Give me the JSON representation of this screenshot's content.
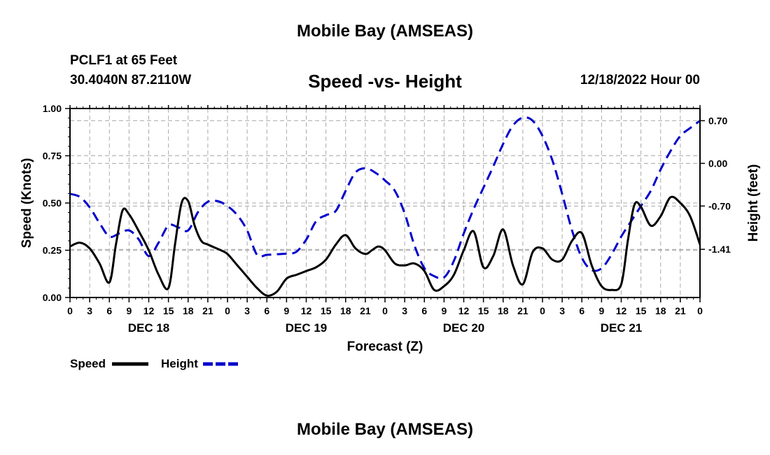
{
  "header": {
    "title": "Mobile Bay (AMSEAS)",
    "station": "PCLF1 at 65 Feet",
    "coords": "30.4040N  87.2110W",
    "subtitle": "Speed -vs- Height",
    "date": "12/18/2022 Hour 00"
  },
  "footer": {
    "title": "Mobile Bay (AMSEAS)"
  },
  "colors": {
    "speed": "#000000",
    "height": "#0000cc",
    "grid": "#aaaaaa"
  },
  "chart_data": {
    "type": "line",
    "title": "Speed -vs- Height",
    "xlabel": "Forecast (Z)",
    "ylabel": "Speed (Knots)",
    "y2label": "Height (feet)",
    "xlim": [
      0,
      96
    ],
    "ylim": [
      0,
      1
    ],
    "y2lim": [
      -2.2,
      0.9
    ],
    "x_ticks": [
      0,
      3,
      6,
      9,
      12,
      15,
      18,
      21,
      24,
      27,
      30,
      33,
      36,
      39,
      42,
      45,
      48,
      51,
      54,
      57,
      60,
      63,
      66,
      69,
      72,
      75,
      78,
      81,
      84,
      87,
      90,
      93,
      96
    ],
    "x_tick_labels": [
      "0",
      "3",
      "6",
      "9",
      "12",
      "15",
      "18",
      "21",
      "0",
      "3",
      "6",
      "9",
      "12",
      "15",
      "18",
      "21",
      "0",
      "3",
      "6",
      "9",
      "12",
      "15",
      "18",
      "21",
      "0",
      "3",
      "6",
      "9",
      "12",
      "15",
      "18",
      "21",
      "0"
    ],
    "day_labels": [
      {
        "x": 12,
        "label": "DEC 18"
      },
      {
        "x": 36,
        "label": "DEC 19"
      },
      {
        "x": 60,
        "label": "DEC 20"
      },
      {
        "x": 84,
        "label": "DEC 21"
      }
    ],
    "y_ticks": [
      0,
      0.25,
      0.5,
      0.75,
      1.0
    ],
    "y_tick_labels": [
      "0.00",
      "0.25",
      "0.50",
      "0.75",
      "1.00"
    ],
    "y2_ticks": [
      0.7,
      0.0,
      -0.7,
      -1.41
    ],
    "y2_tick_labels": [
      "0.70",
      "0.00",
      "-0.70",
      "-1.41"
    ],
    "series": [
      {
        "name": "Speed",
        "axis": "left",
        "style": "solid",
        "x": [
          0,
          1.5,
          3,
          4.5,
          6,
          7,
          8,
          9,
          10.5,
          12,
          13.5,
          15,
          16,
          17,
          18,
          19,
          20,
          21,
          23,
          24,
          25.5,
          27,
          28.5,
          30,
          31.5,
          33,
          34.5,
          36,
          37.5,
          39,
          40.5,
          42,
          43.5,
          45,
          46,
          47,
          48,
          49.5,
          51,
          52.5,
          54,
          55.5,
          57,
          58.5,
          60,
          61.5,
          63,
          64.5,
          66,
          67.5,
          69,
          70.5,
          72,
          73.5,
          75,
          76.5,
          78,
          79.5,
          81,
          82.5,
          84,
          85,
          86,
          87,
          88.5,
          90,
          91.5,
          93,
          94.5,
          96
        ],
        "values": [
          0.27,
          0.29,
          0.26,
          0.18,
          0.08,
          0.28,
          0.46,
          0.44,
          0.35,
          0.25,
          0.12,
          0.05,
          0.28,
          0.5,
          0.51,
          0.38,
          0.3,
          0.28,
          0.25,
          0.23,
          0.17,
          0.11,
          0.05,
          0.01,
          0.03,
          0.1,
          0.12,
          0.14,
          0.16,
          0.2,
          0.28,
          0.33,
          0.26,
          0.23,
          0.25,
          0.27,
          0.25,
          0.18,
          0.17,
          0.18,
          0.14,
          0.04,
          0.06,
          0.12,
          0.25,
          0.35,
          0.16,
          0.22,
          0.36,
          0.17,
          0.07,
          0.24,
          0.26,
          0.2,
          0.2,
          0.3,
          0.34,
          0.17,
          0.06,
          0.04,
          0.07,
          0.3,
          0.49,
          0.48,
          0.38,
          0.43,
          0.53,
          0.5,
          0.43,
          0.28
        ]
      },
      {
        "name": "Height",
        "axis": "right",
        "style": "dashed",
        "x": [
          0,
          1.5,
          3,
          4.5,
          6,
          7.5,
          9,
          10.5,
          12,
          13.5,
          15,
          16.5,
          18,
          19.5,
          21,
          22.5,
          24,
          25.5,
          27,
          28.5,
          30,
          31.5,
          33,
          34.5,
          36,
          37.5,
          39,
          40.5,
          42,
          43.5,
          45,
          46.5,
          48,
          49.5,
          51,
          52.5,
          54,
          55.5,
          57,
          58.5,
          60,
          61.5,
          63,
          64.5,
          66,
          67.5,
          69,
          70.5,
          72,
          73.5,
          75,
          76.5,
          78,
          79.5,
          81,
          82.5,
          84,
          85.5,
          87,
          88.5,
          90,
          91.5,
          93,
          94.5,
          96
        ],
        "values": [
          -0.5,
          -0.55,
          -0.72,
          -0.98,
          -1.2,
          -1.15,
          -1.1,
          -1.25,
          -1.52,
          -1.3,
          -1.02,
          -1.05,
          -1.1,
          -0.8,
          -0.63,
          -0.62,
          -0.7,
          -0.85,
          -1.1,
          -1.5,
          -1.5,
          -1.49,
          -1.48,
          -1.45,
          -1.25,
          -0.95,
          -0.85,
          -0.78,
          -0.45,
          -0.15,
          -0.08,
          -0.15,
          -0.28,
          -0.45,
          -0.82,
          -1.35,
          -1.72,
          -1.85,
          -1.87,
          -1.6,
          -1.15,
          -0.75,
          -0.4,
          -0.05,
          0.32,
          0.62,
          0.75,
          0.7,
          0.45,
          0.05,
          -0.5,
          -1.1,
          -1.55,
          -1.75,
          -1.72,
          -1.5,
          -1.2,
          -0.95,
          -0.7,
          -0.45,
          -0.1,
          0.2,
          0.45,
          0.58,
          0.7
        ]
      }
    ],
    "legend": [
      {
        "label": "Speed",
        "style": "solid"
      },
      {
        "label": "Height",
        "style": "dashed"
      }
    ]
  }
}
